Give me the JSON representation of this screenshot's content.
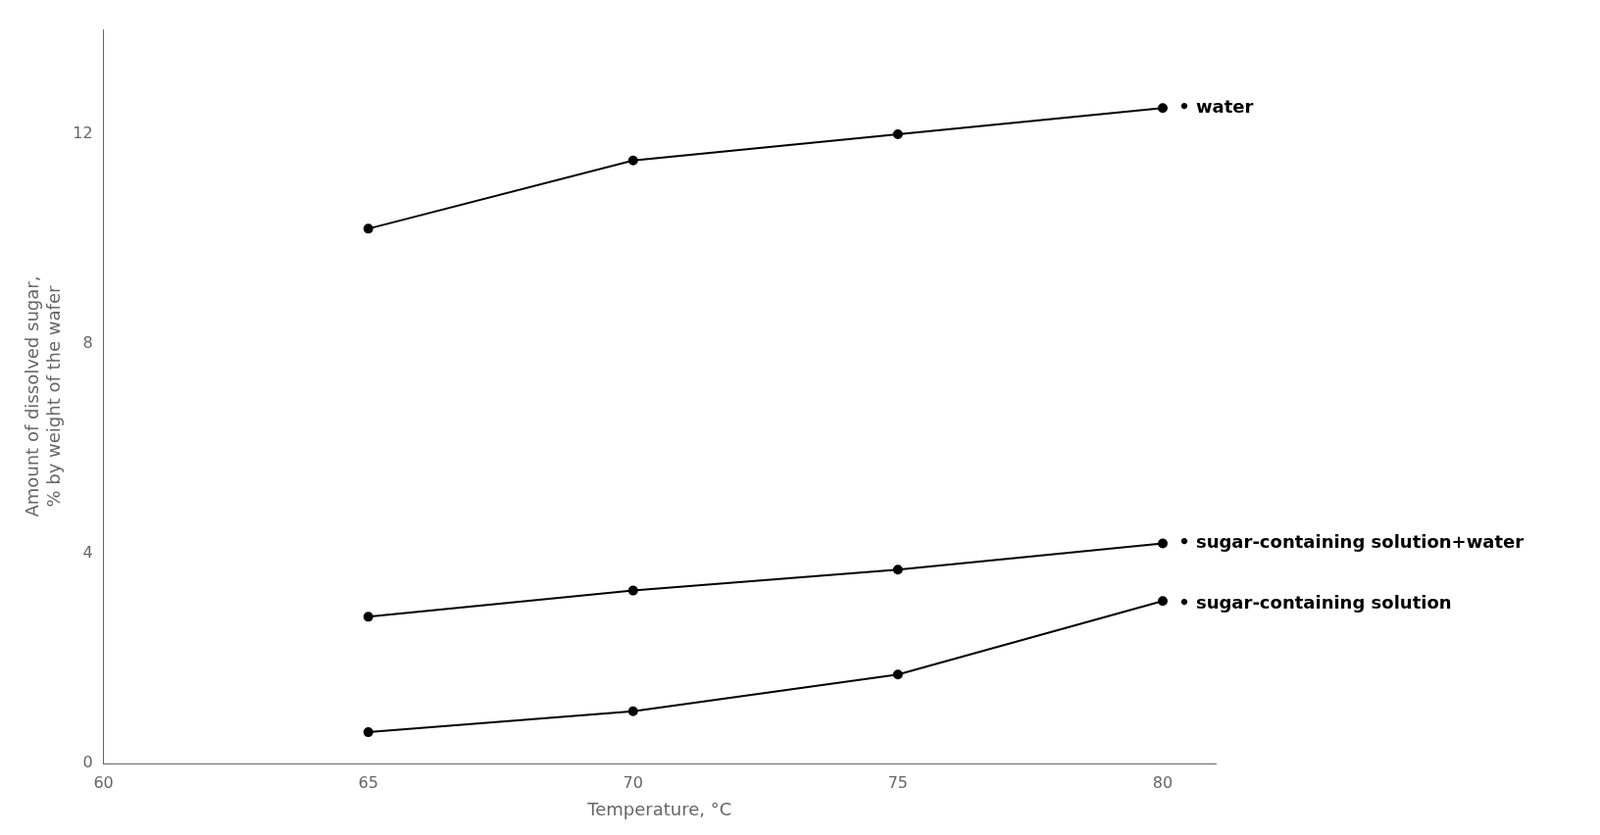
{
  "chart_data": {
    "type": "line",
    "xlabel": "Temperature, °C",
    "ylabel": "Amount of dissolved sugar,\n% by weight of the wafer",
    "x": [
      65,
      70,
      75,
      80
    ],
    "series": [
      {
        "color": "#000000",
        "values": [
          10.2,
          11.5,
          12.0,
          12.5
        ]
      },
      {
        "color": "#000000",
        "values": [
          2.8,
          3.3,
          3.7,
          4.2
        ]
      },
      {
        "color": "#000000",
        "values": [
          0.6,
          1.0,
          1.7,
          3.1
        ]
      }
    ],
    "annotations": [
      {
        "text": "• water",
        "x": 80.3,
        "y": 12.5
      },
      {
        "text": "• sugar-containing solution+water",
        "x": 80.3,
        "y": 4.2
      },
      {
        "text": "• sugar-containing solution",
        "x": 80.3,
        "y": 3.05
      }
    ],
    "xlim": [
      60,
      81
    ],
    "ylim": [
      0,
      14
    ],
    "xticks": [
      60,
      65,
      70,
      75,
      80
    ],
    "yticks": [
      0,
      4,
      8,
      12
    ],
    "grid": false,
    "marker": "circle",
    "line_style": "solid"
  }
}
